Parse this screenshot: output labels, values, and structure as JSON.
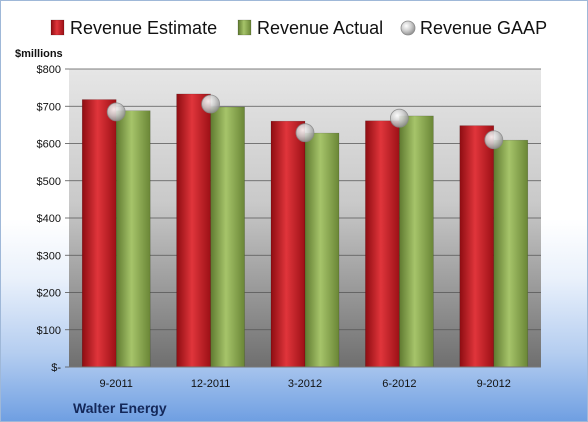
{
  "chart_data": {
    "type": "bar",
    "unit_label": "$millions",
    "company": "Walter Energy",
    "categories": [
      "9-2011",
      "12-2011",
      "3-2012",
      "6-2012",
      "9-2012"
    ],
    "series": [
      {
        "name": "Revenue Estimate",
        "kind": "bar",
        "color": "#c8141e",
        "values": [
          718,
          733,
          660,
          661,
          648
        ]
      },
      {
        "name": "Revenue Actual",
        "kind": "bar",
        "color": "#8aaa50",
        "values": [
          688,
          698,
          628,
          674,
          609
        ]
      },
      {
        "name": "Revenue GAAP",
        "kind": "marker",
        "color": "#b8b8b8",
        "values": [
          685,
          706,
          629,
          668,
          610
        ]
      }
    ],
    "ylim": [
      0,
      800
    ],
    "y_ticks": [
      {
        "value": 0,
        "label": "$-"
      },
      {
        "value": 100,
        "label": "$100"
      },
      {
        "value": 200,
        "label": "$200"
      },
      {
        "value": 300,
        "label": "$300"
      },
      {
        "value": 400,
        "label": "$400"
      },
      {
        "value": 500,
        "label": "$500"
      },
      {
        "value": 600,
        "label": "$600"
      },
      {
        "value": 700,
        "label": "$700"
      },
      {
        "value": 800,
        "label": "$800"
      }
    ],
    "grid": true,
    "legend_position": "top"
  }
}
